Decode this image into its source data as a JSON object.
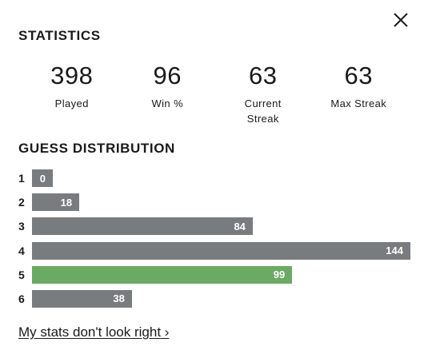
{
  "close_label": "Close",
  "statistics": {
    "title": "STATISTICS",
    "items": [
      {
        "value": "398",
        "label": "Played"
      },
      {
        "value": "96",
        "label": "Win %"
      },
      {
        "value": "63",
        "label": "Current Streak"
      },
      {
        "value": "63",
        "label": "Max Streak"
      }
    ]
  },
  "distribution": {
    "title": "GUESS DISTRIBUTION",
    "highlight_color": "#6aaa64",
    "bar_color": "#787c7e",
    "rows": [
      {
        "guess": "1",
        "count": 0,
        "highlight": false
      },
      {
        "guess": "2",
        "count": 18,
        "highlight": false
      },
      {
        "guess": "3",
        "count": 84,
        "highlight": false
      },
      {
        "guess": "4",
        "count": 144,
        "highlight": false
      },
      {
        "guess": "5",
        "count": 99,
        "highlight": true
      },
      {
        "guess": "6",
        "count": 38,
        "highlight": false
      }
    ]
  },
  "footer": {
    "link_text": "My stats don't look right ›"
  }
}
